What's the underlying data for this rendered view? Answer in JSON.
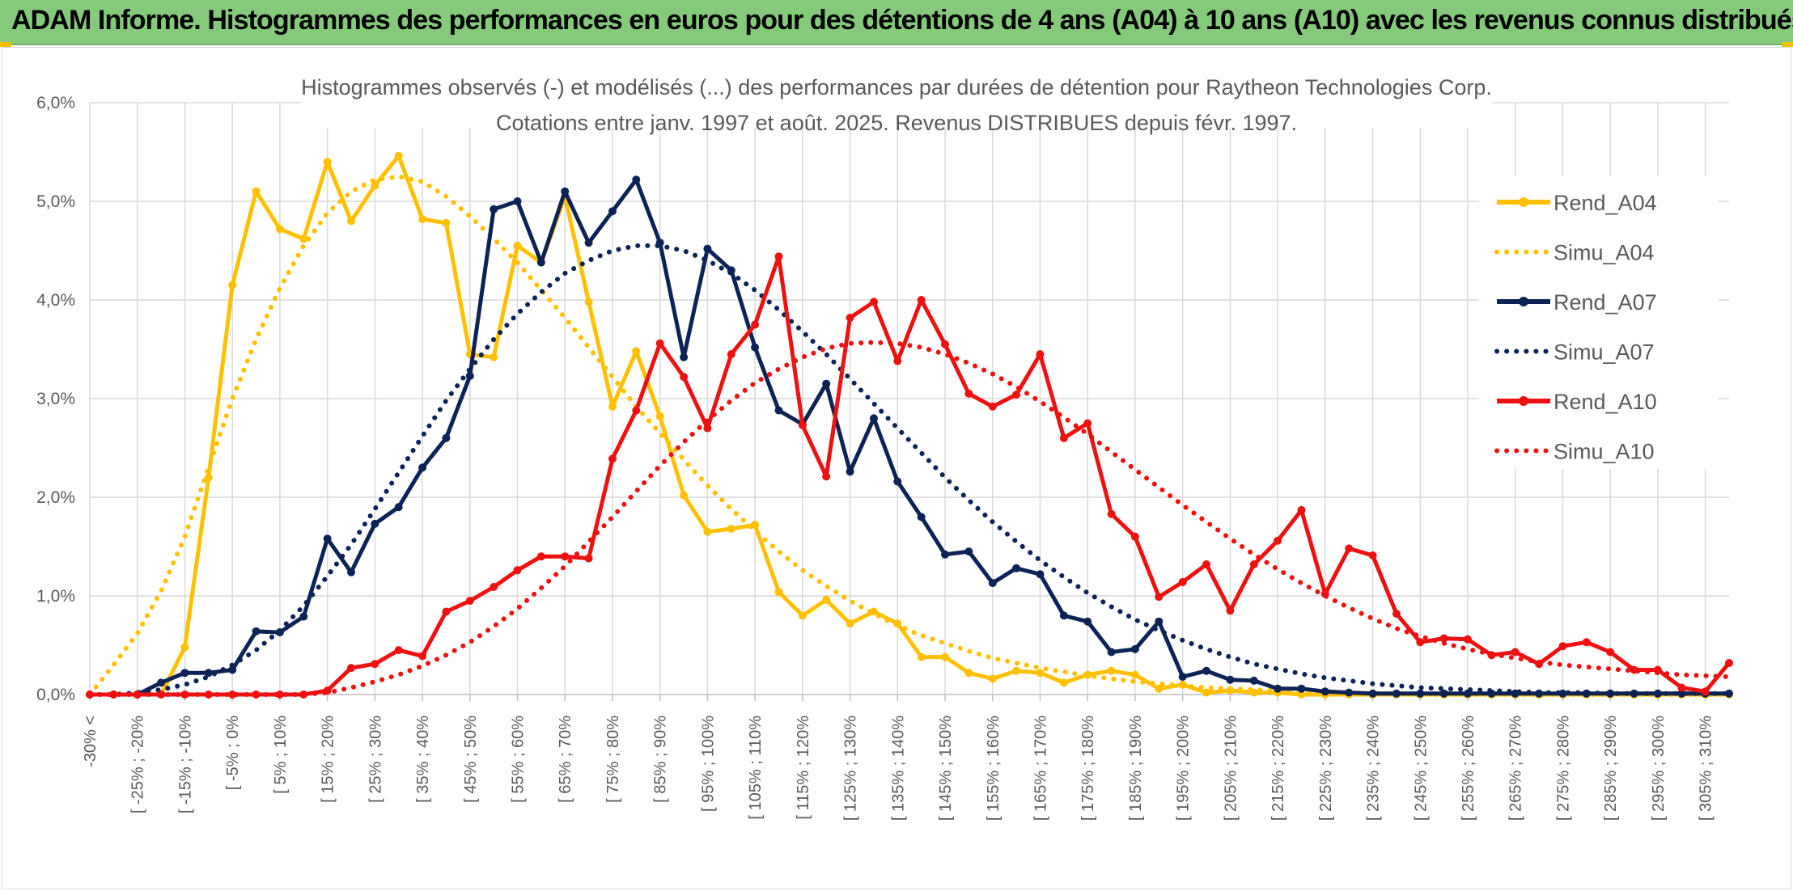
{
  "page": {
    "title": "ADAM Informe. Histogrammes des performances en euros pour des détentions de 4 ans (A04) à 10 ans (A10) avec les revenus connus distribués",
    "colors": {
      "banner": "#85c97b",
      "accent": "#f2c100"
    }
  },
  "chart_data": {
    "type": "line",
    "title": "",
    "subtitle_line1": "Histogrammes observés (-) et modélisés (...) des performances par durées de détention pour Raytheon Technologies Corp.",
    "subtitle_line2": "Cotations entre janv. 1997 et août. 2025. Revenus DISTRIBUES depuis févr. 1997.",
    "xlabel": "",
    "ylabel": "",
    "ylim": [
      0,
      6
    ],
    "y_unit": "%",
    "y_ticks": [
      "0,0%",
      "1,0%",
      "2,0%",
      "3,0%",
      "4,0%",
      "5,0%",
      "6,0%"
    ],
    "grid": true,
    "legend_position": "right",
    "x_tick_labels": [
      "-30% <",
      "[ -25% ; -20%",
      "[ -15% ; -10%",
      "[ -5% ; 0%",
      "[ 5% ; 10%",
      "[ 15% ; 20%",
      "[ 25% ; 30%",
      "[ 35% ; 40%",
      "[ 45% ; 50%",
      "[ 55% ; 60%",
      "[ 65% ; 70%",
      "[ 75% ; 80%",
      "[ 85% ; 90%",
      "[ 95% ; 100%",
      "[ 105% ; 110%",
      "[ 115% ; 120%",
      "[ 125% ; 130%",
      "[ 135% ; 140%",
      "[ 145% ; 150%",
      "[ 155% ; 160%",
      "[ 165% ; 170%",
      "[ 175% ; 180%",
      "[ 185% ; 190%",
      "[ 195% ; 200%",
      "[ 205% ; 210%",
      "[ 215% ; 220%",
      "[ 225% ; 230%",
      "[ 235% ; 240%",
      "[ 245% ; 250%",
      "[ 255% ; 260%",
      "[ 265% ; 270%",
      "[ 275% ; 280%",
      "[ 285% ; 290%",
      "[ 295% ; 300%",
      "[ 305% ; 310%"
    ],
    "series": [
      {
        "name": "Rend_A04",
        "style": "solid",
        "markers": true,
        "color": "#ffc000",
        "values": [
          0.0,
          0.0,
          0.0,
          0.0,
          0.48,
          2.2,
          4.15,
          5.1,
          4.72,
          4.62,
          5.4,
          4.8,
          5.16,
          5.46,
          4.82,
          4.78,
          3.45,
          3.42,
          4.55,
          4.38,
          5.05,
          3.98,
          2.92,
          3.48,
          2.82,
          2.02,
          1.65,
          1.68,
          1.72,
          1.04,
          0.8,
          0.96,
          0.72,
          0.84,
          0.72,
          0.38,
          0.38,
          0.22,
          0.16,
          0.24,
          0.22,
          0.12,
          0.2,
          0.24,
          0.2,
          0.06,
          0.1,
          0.02,
          0.04,
          0.02,
          0.02,
          0.0,
          0.0,
          0.0,
          0.0,
          0.0,
          0.0,
          0.0,
          0.0,
          0.0,
          0.0,
          0.0,
          0.0,
          0.0,
          0.0,
          0.0,
          0.0,
          0.0,
          0.0,
          0.0
        ]
      },
      {
        "name": "Simu_A04",
        "style": "dotted",
        "markers": false,
        "color": "#ffc000",
        "values": [
          0.0,
          0.3,
          0.62,
          1.05,
          1.6,
          2.3,
          3.0,
          3.6,
          4.12,
          4.55,
          4.88,
          5.1,
          5.22,
          5.25,
          5.2,
          5.05,
          4.85,
          4.62,
          4.38,
          4.1,
          3.82,
          3.52,
          3.22,
          2.92,
          2.65,
          2.38,
          2.12,
          1.88,
          1.66,
          1.45,
          1.26,
          1.1,
          0.95,
          0.82,
          0.7,
          0.6,
          0.52,
          0.44,
          0.37,
          0.32,
          0.27,
          0.23,
          0.19,
          0.16,
          0.13,
          0.11,
          0.09,
          0.07,
          0.06,
          0.05,
          0.04,
          0.03,
          0.02,
          0.02,
          0.01,
          0.01,
          0.0,
          0.0,
          0.0,
          0.0,
          0.0,
          0.0,
          0.0,
          0.0,
          0.0,
          0.0,
          0.0,
          0.0,
          0.0,
          0.0
        ]
      },
      {
        "name": "Rend_A07",
        "style": "solid",
        "markers": true,
        "color": "#0d2356",
        "values": [
          0.0,
          0.0,
          0.0,
          0.12,
          0.22,
          0.22,
          0.25,
          0.64,
          0.63,
          0.79,
          1.58,
          1.24,
          1.73,
          1.9,
          2.3,
          2.6,
          3.23,
          4.92,
          5.0,
          4.38,
          5.1,
          4.58,
          4.9,
          5.22,
          4.58,
          3.42,
          4.52,
          4.3,
          3.52,
          2.88,
          2.74,
          3.15,
          2.26,
          2.8,
          2.16,
          1.8,
          1.42,
          1.45,
          1.13,
          1.28,
          1.22,
          0.8,
          0.74,
          0.43,
          0.46,
          0.74,
          0.18,
          0.24,
          0.15,
          0.14,
          0.06,
          0.06,
          0.03,
          0.02,
          0.01,
          0.01,
          0.01,
          0.01,
          0.01,
          0.01,
          0.01,
          0.01,
          0.01,
          0.01,
          0.01,
          0.01,
          0.01,
          0.01,
          0.01,
          0.01
        ]
      },
      {
        "name": "Simu_A07",
        "style": "dotted",
        "markers": false,
        "color": "#0d2356",
        "values": [
          0.0,
          0.0,
          0.02,
          0.05,
          0.1,
          0.18,
          0.3,
          0.45,
          0.65,
          0.9,
          1.2,
          1.52,
          1.88,
          2.25,
          2.62,
          2.98,
          3.3,
          3.6,
          3.86,
          4.08,
          4.27,
          4.4,
          4.5,
          4.55,
          4.55,
          4.5,
          4.4,
          4.27,
          4.1,
          3.9,
          3.68,
          3.45,
          3.2,
          2.95,
          2.7,
          2.45,
          2.2,
          1.97,
          1.75,
          1.55,
          1.36,
          1.19,
          1.03,
          0.89,
          0.76,
          0.65,
          0.55,
          0.46,
          0.38,
          0.31,
          0.26,
          0.21,
          0.17,
          0.14,
          0.11,
          0.09,
          0.07,
          0.06,
          0.05,
          0.04,
          0.03,
          0.02,
          0.02,
          0.02,
          0.01,
          0.01,
          0.01,
          0.01,
          0.01,
          0.01
        ]
      },
      {
        "name": "Rend_A10",
        "style": "solid",
        "markers": true,
        "color": "#ee1111",
        "values": [
          0.0,
          0.0,
          0.0,
          0.0,
          0.0,
          0.0,
          0.0,
          0.0,
          0.0,
          0.0,
          0.04,
          0.27,
          0.31,
          0.45,
          0.39,
          0.84,
          0.95,
          1.09,
          1.26,
          1.4,
          1.4,
          1.38,
          2.39,
          2.88,
          3.56,
          3.22,
          2.7,
          3.45,
          3.75,
          4.44,
          2.73,
          2.21,
          3.82,
          3.98,
          3.38,
          4.0,
          3.55,
          3.05,
          2.92,
          3.04,
          3.45,
          2.6,
          2.75,
          1.83,
          1.6,
          0.99,
          1.14,
          1.32,
          0.85,
          1.32,
          1.56,
          1.87,
          1.02,
          1.48,
          1.41,
          0.82,
          0.53,
          0.57,
          0.56,
          0.4,
          0.43,
          0.31,
          0.49,
          0.53,
          0.43,
          0.25,
          0.25,
          0.07,
          0.03,
          0.32
        ]
      },
      {
        "name": "Simu_A10",
        "style": "dotted",
        "markers": false,
        "color": "#ee1111",
        "values": [
          0.0,
          0.0,
          0.0,
          0.0,
          0.0,
          0.0,
          0.0,
          0.0,
          0.0,
          0.0,
          0.02,
          0.07,
          0.13,
          0.2,
          0.29,
          0.4,
          0.53,
          0.69,
          0.87,
          1.08,
          1.3,
          1.55,
          1.8,
          2.06,
          2.32,
          2.56,
          2.78,
          2.98,
          3.16,
          3.3,
          3.42,
          3.51,
          3.56,
          3.57,
          3.56,
          3.52,
          3.45,
          3.36,
          3.25,
          3.12,
          2.97,
          2.81,
          2.64,
          2.46,
          2.28,
          2.1,
          1.92,
          1.75,
          1.58,
          1.42,
          1.27,
          1.13,
          1.0,
          0.88,
          0.77,
          0.67,
          0.59,
          0.52,
          0.46,
          0.41,
          0.37,
          0.33,
          0.3,
          0.28,
          0.26,
          0.24,
          0.22,
          0.2,
          0.19,
          0.18
        ]
      }
    ]
  }
}
